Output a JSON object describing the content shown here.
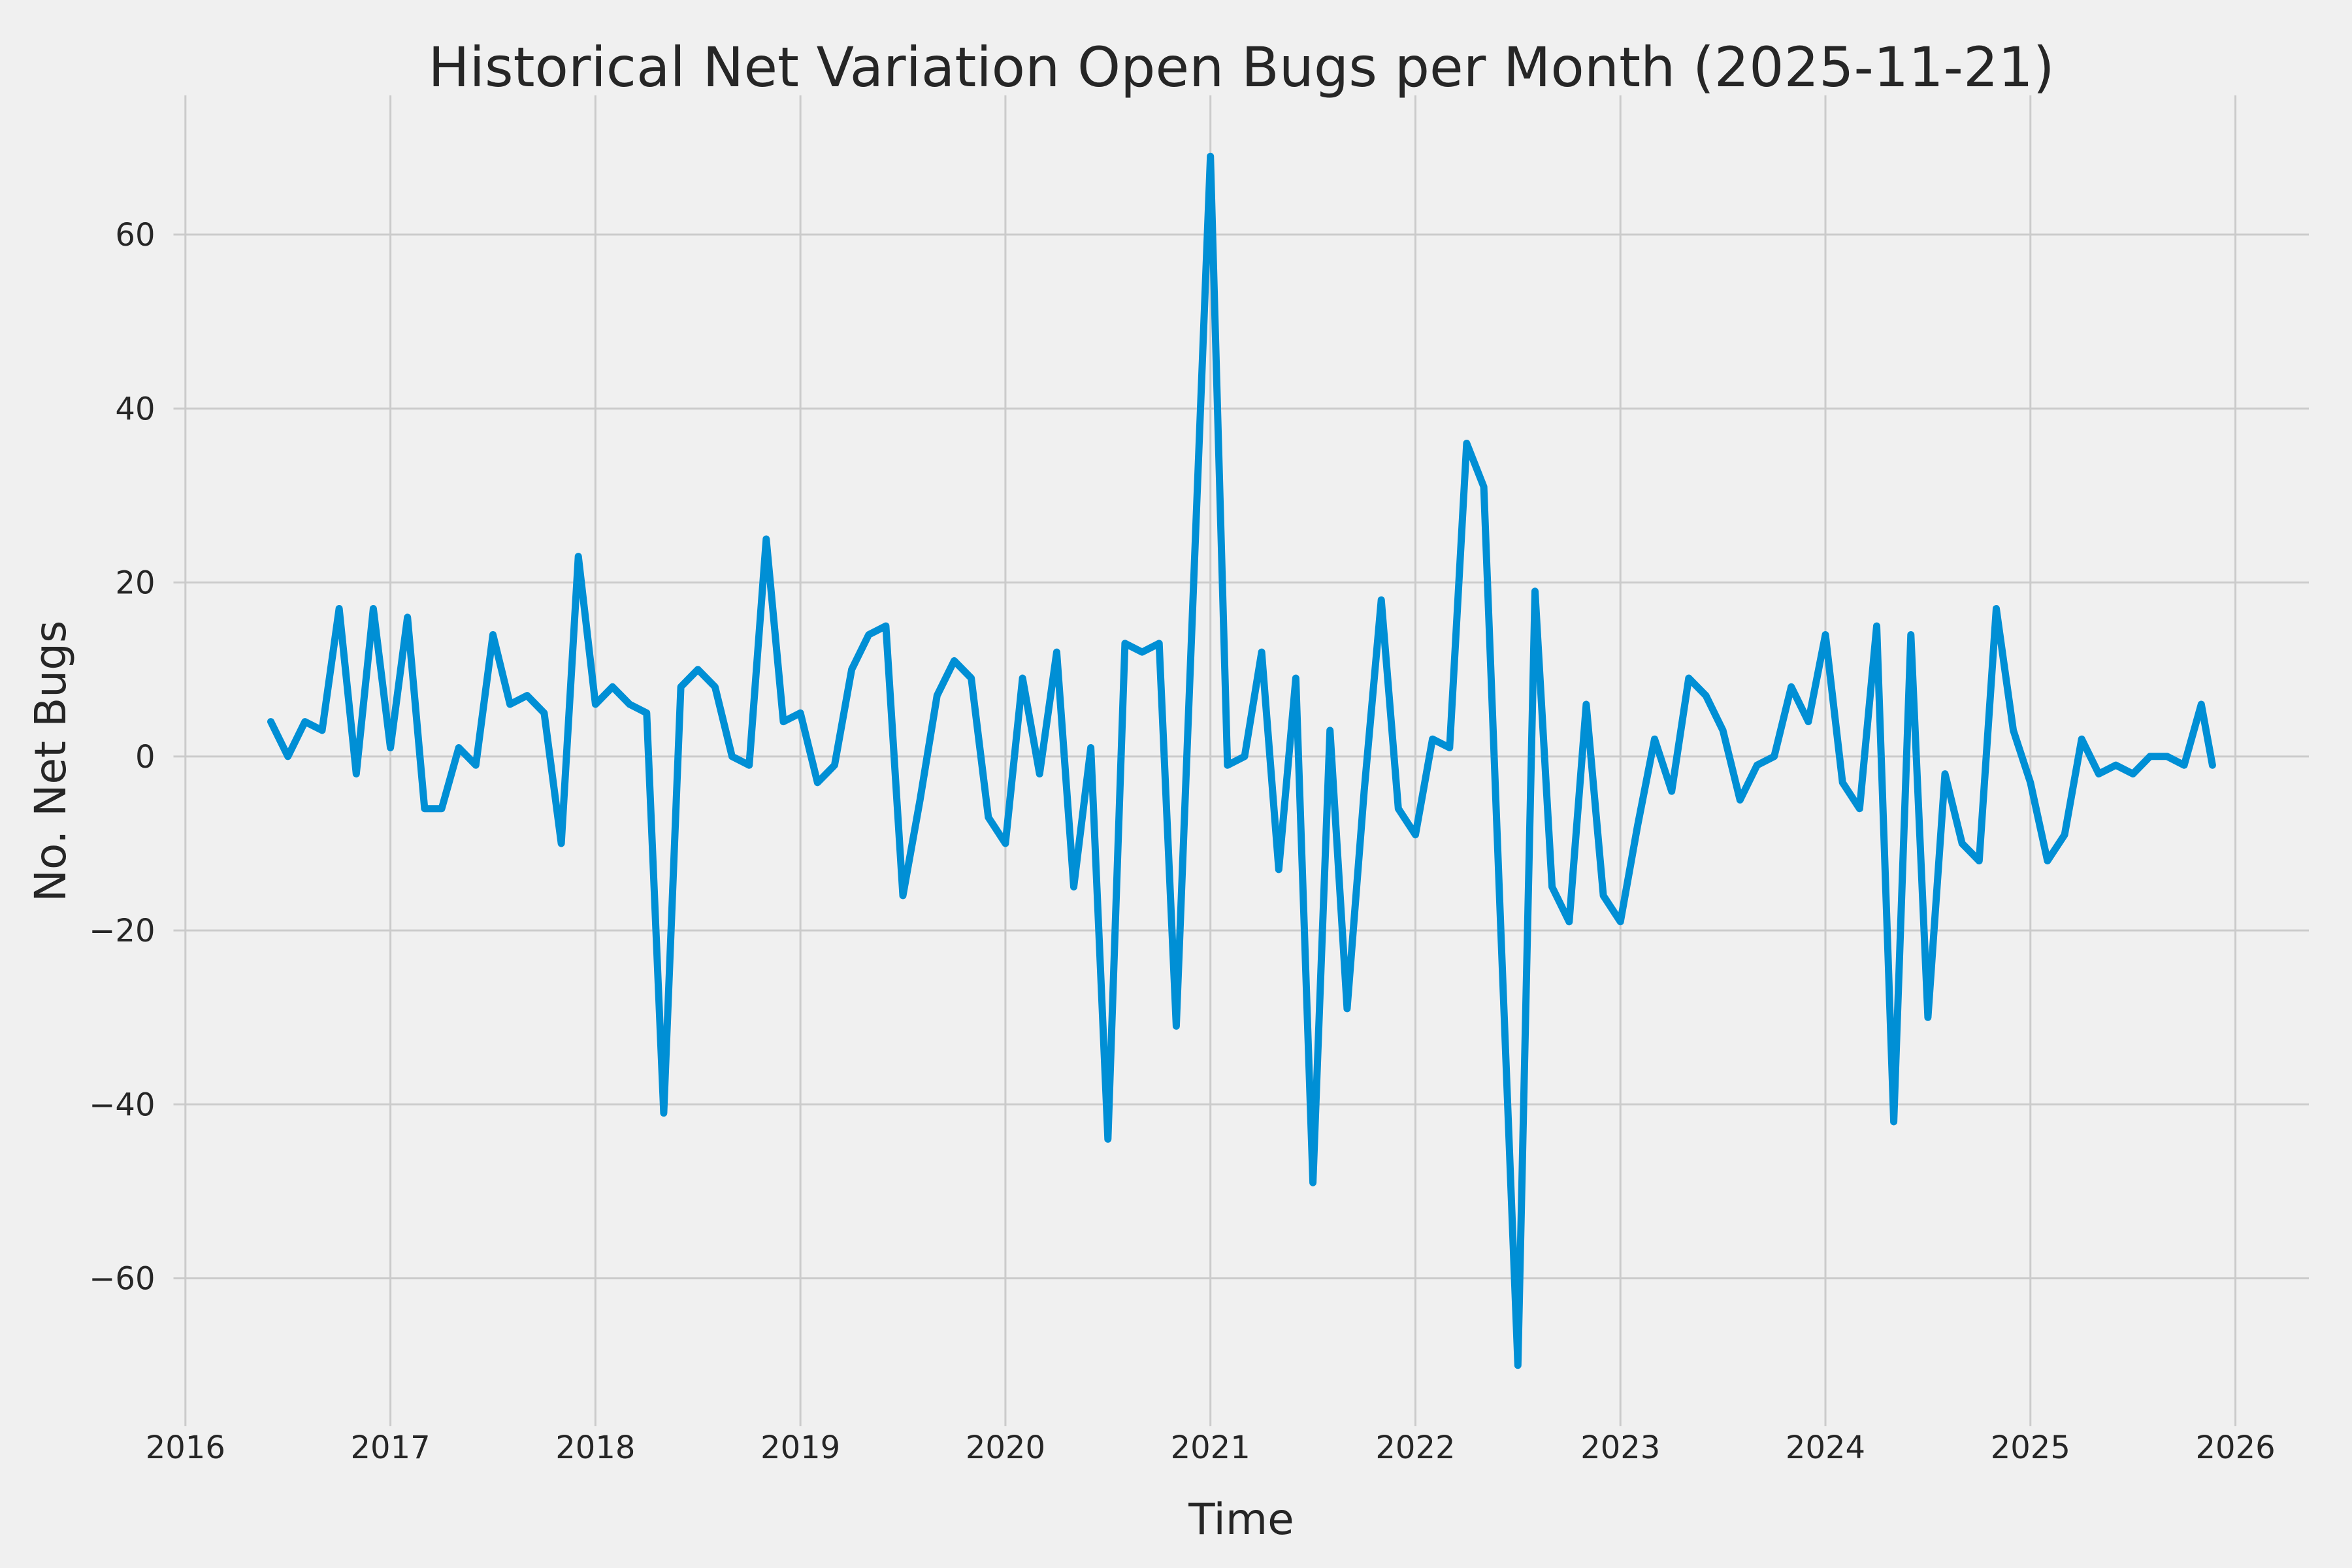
{
  "chart_data": {
    "type": "line",
    "title": "Historical Net Variation Open Bugs per Month (2025-11-21)",
    "xlabel": "Time",
    "ylabel": "No. Net Bugs",
    "legend": "none",
    "grid": "on",
    "style": {
      "background_color": "#f0f0f0",
      "grid_color": "#cbcbcb",
      "line_color": "#008fd5",
      "text_color": "#262626"
    },
    "x_tick_labels": [
      "2016",
      "2017",
      "2018",
      "2019",
      "2020",
      "2021",
      "2022",
      "2023",
      "2024",
      "2025",
      "2026"
    ],
    "y_tick_labels": [
      "60",
      "40",
      "20",
      "0",
      "−20",
      "−40",
      "−60"
    ],
    "y_tick_values": [
      60,
      40,
      20,
      0,
      -20,
      -40,
      -60
    ],
    "xlim_months_from_2016_01": [
      -0.7,
      124.3
    ],
    "ylim": [
      -77.0,
      76.0
    ],
    "series": [
      {
        "name": "Net variation of open bugs",
        "points": [
          [
            "2016-06",
            4
          ],
          [
            "2016-07",
            0
          ],
          [
            "2016-08",
            4
          ],
          [
            "2016-09",
            3
          ],
          [
            "2016-10",
            17
          ],
          [
            "2016-11",
            -2
          ],
          [
            "2016-12",
            17
          ],
          [
            "2017-01",
            1
          ],
          [
            "2017-02",
            16
          ],
          [
            "2017-03",
            -6
          ],
          [
            "2017-04",
            -6
          ],
          [
            "2017-05",
            1
          ],
          [
            "2017-06",
            -1
          ],
          [
            "2017-07",
            14
          ],
          [
            "2017-08",
            6
          ],
          [
            "2017-09",
            7
          ],
          [
            "2017-10",
            5
          ],
          [
            "2017-11",
            -10
          ],
          [
            "2017-12",
            23
          ],
          [
            "2018-01",
            6
          ],
          [
            "2018-02",
            8
          ],
          [
            "2018-03",
            6
          ],
          [
            "2018-04",
            5
          ],
          [
            "2018-05",
            -41
          ],
          [
            "2018-06",
            8
          ],
          [
            "2018-07",
            10
          ],
          [
            "2018-08",
            8
          ],
          [
            "2018-09",
            0
          ],
          [
            "2018-10",
            -1
          ],
          [
            "2018-11",
            25
          ],
          [
            "2018-12",
            4
          ],
          [
            "2019-01",
            5
          ],
          [
            "2019-02",
            -3
          ],
          [
            "2019-03",
            -1
          ],
          [
            "2019-04",
            10
          ],
          [
            "2019-05",
            14
          ],
          [
            "2019-06",
            15
          ],
          [
            "2019-07",
            -16
          ],
          [
            "2019-08",
            -5
          ],
          [
            "2019-09",
            7
          ],
          [
            "2019-10",
            11
          ],
          [
            "2019-11",
            9
          ],
          [
            "2019-12",
            -7
          ],
          [
            "2020-01",
            -10
          ],
          [
            "2020-02",
            9
          ],
          [
            "2020-03",
            -2
          ],
          [
            "2020-04",
            12
          ],
          [
            "2020-05",
            -15
          ],
          [
            "2020-06",
            1
          ],
          [
            "2020-07",
            -44
          ],
          [
            "2020-08",
            13
          ],
          [
            "2020-09",
            12
          ],
          [
            "2020-10",
            13
          ],
          [
            "2020-11",
            -31
          ],
          [
            "2020-12",
            19
          ],
          [
            "2021-01",
            69
          ],
          [
            "2021-02",
            -1
          ],
          [
            "2021-03",
            0
          ],
          [
            "2021-04",
            12
          ],
          [
            "2021-05",
            -13
          ],
          [
            "2021-06",
            9
          ],
          [
            "2021-07",
            -49
          ],
          [
            "2021-08",
            3
          ],
          [
            "2021-09",
            -29
          ],
          [
            "2021-10",
            -4
          ],
          [
            "2021-11",
            18
          ],
          [
            "2021-12",
            -6
          ],
          [
            "2022-01",
            -9
          ],
          [
            "2022-02",
            2
          ],
          [
            "2022-03",
            1
          ],
          [
            "2022-04",
            36
          ],
          [
            "2022-05",
            31
          ],
          [
            "2022-06",
            -20
          ],
          [
            "2022-07",
            -70
          ],
          [
            "2022-08",
            19
          ],
          [
            "2022-09",
            -15
          ],
          [
            "2022-10",
            -19
          ],
          [
            "2022-11",
            6
          ],
          [
            "2022-12",
            -16
          ],
          [
            "2023-01",
            -19
          ],
          [
            "2023-02",
            -8
          ],
          [
            "2023-03",
            2
          ],
          [
            "2023-04",
            -4
          ],
          [
            "2023-05",
            9
          ],
          [
            "2023-06",
            7
          ],
          [
            "2023-07",
            3
          ],
          [
            "2023-08",
            -5
          ],
          [
            "2023-09",
            -1
          ],
          [
            "2023-10",
            0
          ],
          [
            "2023-11",
            8
          ],
          [
            "2023-12",
            4
          ],
          [
            "2024-01",
            14
          ],
          [
            "2024-02",
            -3
          ],
          [
            "2024-03",
            -6
          ],
          [
            "2024-04",
            15
          ],
          [
            "2024-05",
            -42
          ],
          [
            "2024-06",
            14
          ],
          [
            "2024-07",
            -30
          ],
          [
            "2024-08",
            -2
          ],
          [
            "2024-09",
            -10
          ],
          [
            "2024-10",
            -12
          ],
          [
            "2024-11",
            17
          ],
          [
            "2024-12",
            3
          ],
          [
            "2025-01",
            -3
          ],
          [
            "2025-02",
            -12
          ],
          [
            "2025-03",
            -9
          ],
          [
            "2025-04",
            2
          ],
          [
            "2025-05",
            -2
          ],
          [
            "2025-06",
            -1
          ],
          [
            "2025-07",
            -2
          ],
          [
            "2025-08",
            0
          ],
          [
            "2025-09",
            0
          ],
          [
            "2025-10",
            -1
          ],
          [
            "2025-11",
            6
          ],
          [
            "2025-11-21",
            -1
          ]
        ]
      }
    ]
  }
}
